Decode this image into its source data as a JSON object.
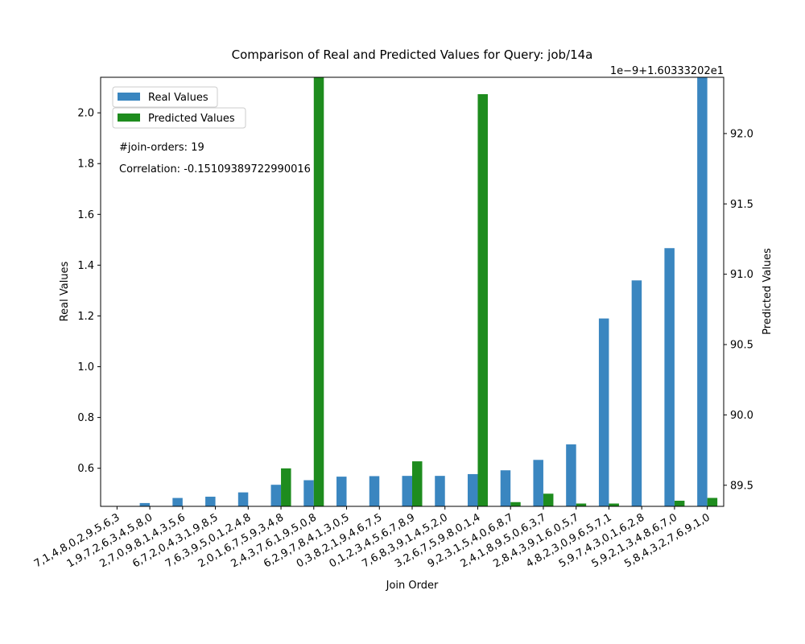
{
  "chart_data": {
    "type": "bar",
    "title": "Comparison of Real and Predicted Values for Query: job/14a",
    "xlabel": "Join Order",
    "ylabel_left": "Real Values",
    "ylabel_right": "Predicted Values",
    "right_offset_text": "1e−9+1.60333202e1",
    "annotations": [
      "#join-orders: 19",
      "Correlation: -0.15109389722990016"
    ],
    "legend_position": "upper-left",
    "grid": false,
    "categories": [
      "7,1,4,8,0,2,9,5,6,3",
      "1,9,7,2,6,3,4,5,8,0",
      "2,7,0,9,8,1,4,3,5,6",
      "6,7,2,0,4,3,1,9,8,5",
      "7,6,3,9,5,0,1,2,4,8",
      "2,0,1,6,7,5,9,3,4,8",
      "2,4,3,7,6,1,9,5,0,8",
      "6,2,9,7,8,4,1,3,0,5",
      "0,3,8,2,1,9,4,6,7,5",
      "0,1,2,3,4,5,6,7,8,9",
      "7,6,8,3,9,1,4,5,2,0",
      "3,2,6,7,5,9,8,0,1,4",
      "9,2,3,1,5,4,0,6,8,7",
      "2,4,1,8,9,5,0,6,3,7",
      "2,8,4,3,9,1,6,0,5,7",
      "4,8,2,3,0,9,6,5,7,1",
      "5,9,7,4,3,0,1,6,2,8",
      "5,9,2,1,3,4,8,6,7,0",
      "5,8,4,3,2,7,6,9,1,0"
    ],
    "series": [
      {
        "name": "Real Values",
        "axis": "left",
        "color": "#3a86c0",
        "values": [
          0.449,
          0.463,
          0.483,
          0.488,
          0.505,
          0.535,
          0.553,
          0.567,
          0.569,
          0.57,
          0.57,
          0.577,
          0.592,
          0.633,
          0.694,
          1.19,
          1.34,
          1.467,
          2.14
        ]
      },
      {
        "name": "Predicted Values",
        "axis": "right",
        "color": "#1e8c1e",
        "values": [
          89.3,
          89.3,
          89.3,
          89.3,
          89.35,
          89.62,
          92.4,
          89.3,
          89.35,
          89.67,
          89.3,
          92.28,
          89.38,
          89.44,
          89.37,
          89.37,
          89.3,
          89.39,
          89.41
        ]
      }
    ],
    "ylim_left": [
      0.45,
      2.14
    ],
    "yticks_left": [
      0.6,
      0.8,
      1.0,
      1.2,
      1.4,
      1.6,
      1.8,
      2.0
    ],
    "ytick_labels_left": [
      "0.6",
      "0.8",
      "1.0",
      "1.2",
      "1.4",
      "1.6",
      "1.8",
      "2.0"
    ],
    "ylim_right": [
      89.35,
      92.4
    ],
    "yticks_right": [
      89.5,
      90.0,
      90.5,
      91.0,
      91.5,
      92.0
    ],
    "ytick_labels_right": [
      "89.5",
      "90.0",
      "90.5",
      "91.0",
      "91.5",
      "92.0"
    ]
  }
}
